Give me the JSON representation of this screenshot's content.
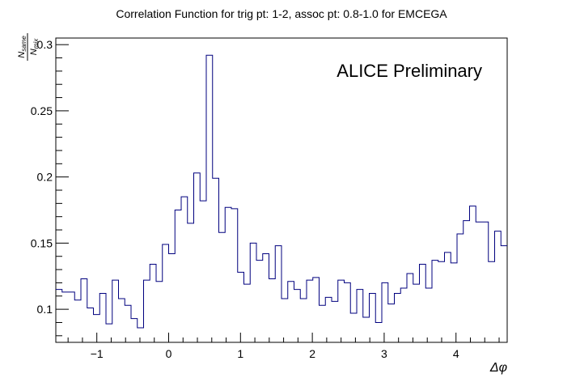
{
  "chart_data": {
    "type": "line",
    "title": "Correlation Function for trig pt: 1-2, assoc pt: 0.8-1.0 for EMCEGA",
    "xlabel": "Δφ",
    "ylabel_num": "N",
    "ylabel_num_sub": "same",
    "ylabel_den": "N",
    "ylabel_den_sub": "mix",
    "annotation": "ALICE Preliminary",
    "xlim": [
      -1.5708,
      4.7124
    ],
    "ylim": [
      0.075,
      0.305
    ],
    "x_ticks": [
      -1,
      0,
      1,
      2,
      3,
      4
    ],
    "x_tick_labels": [
      "−1",
      "0",
      "1",
      "2",
      "3",
      "4"
    ],
    "y_ticks": [
      0.1,
      0.15,
      0.2,
      0.25,
      0.3
    ],
    "y_tick_labels": [
      "0.1",
      "0.15",
      "0.2",
      "0.25",
      "0.3"
    ],
    "line_color": "#00007f",
    "series": [
      {
        "style": "histogram-step",
        "bins": 72,
        "values": [
          0.115,
          0.113,
          0.113,
          0.107,
          0.123,
          0.101,
          0.096,
          0.112,
          0.089,
          0.122,
          0.108,
          0.103,
          0.093,
          0.086,
          0.122,
          0.134,
          0.121,
          0.149,
          0.142,
          0.175,
          0.185,
          0.165,
          0.203,
          0.182,
          0.292,
          0.199,
          0.158,
          0.177,
          0.176,
          0.128,
          0.119,
          0.15,
          0.137,
          0.142,
          0.123,
          0.148,
          0.108,
          0.121,
          0.115,
          0.108,
          0.122,
          0.124,
          0.103,
          0.109,
          0.106,
          0.122,
          0.12,
          0.097,
          0.115,
          0.094,
          0.112,
          0.09,
          0.12,
          0.104,
          0.112,
          0.116,
          0.127,
          0.119,
          0.134,
          0.116,
          0.137,
          0.136,
          0.143,
          0.135,
          0.157,
          0.167,
          0.178,
          0.166,
          0.166,
          0.136,
          0.159,
          0.148
        ]
      }
    ],
    "grid": false,
    "legend": "none"
  }
}
